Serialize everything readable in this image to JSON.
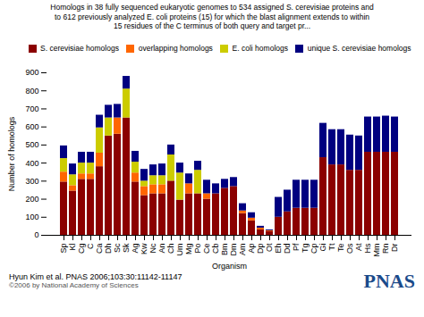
{
  "chart_data": {
    "type": "bar",
    "stacked": true,
    "title": "Homologs in 38 fully sequenced eukaryotic genomes to 534 assigned S. cerevisiae proteins and\nto 612 previously analyzed E. coli proteins (15) for which the blast alignment extends to within\n15 residues of the C terminus of both query and target pr...",
    "xlabel": "Organism",
    "ylabel": "Number of homologs",
    "annotations": [
      "Hyun Kim et al. PNAS 2006;103:30:11142-11147",
      "©2006 by National Academy of Sciences",
      "PNAS"
    ],
    "categories": [
      "Sp",
      "Kl",
      "Cg",
      "C",
      "Ca",
      "Dh",
      "Sc",
      "Sk",
      "Ag",
      "Kw",
      "Nc",
      "An",
      "Ch",
      "Um",
      "Mg",
      "Po",
      "Ce",
      "Cb",
      "Bm",
      "Dm",
      "Am",
      "Ap",
      "Dp",
      "Ot",
      "Eh",
      "Dd",
      "Pf",
      "Tg",
      "Cp",
      "Gi",
      "Tt",
      "Te",
      "Os",
      "At",
      "Hs",
      "Mm",
      "Rn",
      "Dr"
    ],
    "series": [
      {
        "name": "S. cerevisiae homologs",
        "color": "#8B0000",
        "values": [
          295,
          245,
          310,
          310,
          380,
          550,
          560,
          650,
          295,
          220,
          230,
          230,
          300,
          195,
          230,
          230,
          200,
          230,
          260,
          270,
          120,
          80,
          30,
          20,
          100,
          130,
          150,
          150,
          150,
          430,
          390,
          390,
          360,
          360,
          460,
          460,
          460,
          460
        ]
      },
      {
        "name": "overlapping homologs",
        "color": "#FF6600",
        "values": [
          55,
          30,
          30,
          30,
          75,
          0,
          90,
          0,
          50,
          50,
          50,
          50,
          0,
          0,
          55,
          0,
          30,
          0,
          0,
          0,
          15,
          15,
          10,
          5,
          0,
          0,
          0,
          0,
          0,
          0,
          0,
          0,
          0,
          0,
          0,
          0,
          0,
          0
        ]
      },
      {
        "name": "E. coli homologs",
        "color": "#CCCC00",
        "values": [
          75,
          60,
          60,
          60,
          140,
          100,
          0,
          160,
          60,
          30,
          50,
          50,
          145,
          150,
          0,
          130,
          0,
          0,
          0,
          0,
          0,
          0,
          0,
          0,
          0,
          0,
          0,
          0,
          0,
          0,
          0,
          0,
          0,
          0,
          0,
          0,
          0,
          0
        ]
      },
      {
        "name": "unique S. cerevisiae homologs",
        "color": "#000080",
        "values": [
          70,
          60,
          60,
          60,
          70,
          70,
          75,
          70,
          60,
          65,
          60,
          65,
          55,
          55,
          55,
          50,
          75,
          55,
          50,
          50,
          40,
          30,
          10,
          5,
          110,
          120,
          155,
          155,
          155,
          190,
          195,
          195,
          195,
          190,
          195,
          195,
          200,
          195
        ]
      }
    ],
    "ylim": [
      0,
      900
    ],
    "yticks": [
      0,
      100,
      200,
      300,
      400,
      500,
      600,
      700,
      800,
      900
    ],
    "legend": "upper right",
    "grid": false
  }
}
